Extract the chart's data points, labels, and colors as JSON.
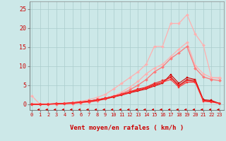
{
  "background_color": "#cce8e8",
  "grid_color": "#aacccc",
  "xlabel": "Vent moyen/en rafales ( km/h )",
  "x_ticks": [
    0,
    1,
    2,
    3,
    4,
    5,
    6,
    7,
    8,
    9,
    10,
    11,
    12,
    13,
    14,
    15,
    16,
    17,
    18,
    19,
    20,
    21,
    22,
    23
  ],
  "ylim": [
    -1.5,
    27
  ],
  "xlim": [
    -0.3,
    23.5
  ],
  "series": [
    {
      "name": "light_pink_top",
      "x": [
        0,
        1,
        2,
        3,
        4,
        5,
        6,
        7,
        8,
        9,
        10,
        11,
        12,
        13,
        14,
        15,
        16,
        17,
        18,
        19,
        20,
        21,
        22,
        23
      ],
      "y": [
        0.2,
        0.1,
        0.1,
        0.2,
        0.3,
        0.5,
        0.8,
        1.2,
        1.8,
        2.6,
        4.0,
        5.5,
        7.0,
        8.5,
        10.5,
        15.2,
        15.2,
        21.2,
        21.2,
        23.5,
        18.5,
        15.5,
        7.0,
        7.0
      ],
      "color": "#ffb0b0",
      "linewidth": 0.9,
      "marker": "D",
      "markersize": 2.0
    },
    {
      "name": "light_pink_mid",
      "x": [
        0,
        1,
        2,
        3,
        4,
        5,
        6,
        7,
        8,
        9,
        10,
        11,
        12,
        13,
        14,
        15,
        16,
        17,
        18,
        19,
        20,
        21,
        22,
        23
      ],
      "y": [
        2.2,
        0.0,
        0.0,
        0.05,
        0.1,
        0.2,
        0.4,
        0.6,
        1.0,
        1.5,
        2.2,
        3.2,
        4.5,
        6.0,
        8.0,
        9.5,
        10.5,
        12.5,
        14.5,
        16.2,
        10.2,
        8.0,
        7.0,
        6.8
      ],
      "color": "#ffb0b0",
      "linewidth": 0.9,
      "marker": "D",
      "markersize": 2.0
    },
    {
      "name": "medium_pink",
      "x": [
        0,
        1,
        2,
        3,
        4,
        5,
        6,
        7,
        8,
        9,
        10,
        11,
        12,
        13,
        14,
        15,
        16,
        17,
        18,
        19,
        20,
        21,
        22,
        23
      ],
      "y": [
        0.0,
        0.0,
        0.0,
        0.05,
        0.1,
        0.2,
        0.4,
        0.6,
        0.9,
        1.4,
        2.0,
        2.8,
        3.8,
        5.0,
        6.5,
        8.5,
        9.8,
        12.0,
        13.5,
        15.2,
        9.5,
        7.2,
        6.5,
        6.2
      ],
      "color": "#ff7777",
      "linewidth": 0.9,
      "marker": "D",
      "markersize": 2.0
    },
    {
      "name": "red_dark1",
      "x": [
        0,
        1,
        2,
        3,
        4,
        5,
        6,
        7,
        8,
        9,
        10,
        11,
        12,
        13,
        14,
        15,
        16,
        17,
        18,
        19,
        20,
        21,
        22,
        23
      ],
      "y": [
        0.0,
        0.0,
        0.05,
        0.1,
        0.2,
        0.3,
        0.5,
        0.7,
        1.0,
        1.4,
        1.9,
        2.4,
        3.0,
        3.5,
        4.0,
        4.8,
        5.5,
        7.8,
        5.5,
        7.0,
        6.5,
        1.2,
        1.0,
        0.2
      ],
      "color": "#cc0000",
      "linewidth": 0.8,
      "marker": "s",
      "markersize": 2.0
    },
    {
      "name": "red_dark2",
      "x": [
        0,
        1,
        2,
        3,
        4,
        5,
        6,
        7,
        8,
        9,
        10,
        11,
        12,
        13,
        14,
        15,
        16,
        17,
        18,
        19,
        20,
        21,
        22,
        23
      ],
      "y": [
        0.0,
        0.0,
        0.05,
        0.15,
        0.25,
        0.4,
        0.6,
        0.85,
        1.2,
        1.6,
        2.1,
        2.6,
        3.2,
        3.8,
        4.3,
        5.2,
        5.8,
        7.2,
        5.0,
        6.5,
        6.2,
        1.0,
        0.8,
        0.2
      ],
      "color": "#dd1111",
      "linewidth": 0.8,
      "marker": "s",
      "markersize": 2.0
    },
    {
      "name": "red_med1",
      "x": [
        0,
        1,
        2,
        3,
        4,
        5,
        6,
        7,
        8,
        9,
        10,
        11,
        12,
        13,
        14,
        15,
        16,
        17,
        18,
        19,
        20,
        21,
        22,
        23
      ],
      "y": [
        0.0,
        0.0,
        0.05,
        0.15,
        0.25,
        0.4,
        0.6,
        0.85,
        1.2,
        1.6,
        2.1,
        2.65,
        3.3,
        4.0,
        4.5,
        5.5,
        6.2,
        7.0,
        4.8,
        6.2,
        6.0,
        0.9,
        0.7,
        0.2
      ],
      "color": "#ee2222",
      "linewidth": 0.8,
      "marker": "s",
      "markersize": 2.0
    },
    {
      "name": "red_med2",
      "x": [
        0,
        1,
        2,
        3,
        4,
        5,
        6,
        7,
        8,
        9,
        10,
        11,
        12,
        13,
        14,
        15,
        16,
        17,
        18,
        19,
        20,
        21,
        22,
        23
      ],
      "y": [
        0.0,
        0.0,
        0.0,
        0.1,
        0.2,
        0.35,
        0.55,
        0.8,
        1.15,
        1.55,
        2.0,
        2.5,
        3.1,
        3.7,
        4.2,
        5.0,
        5.8,
        6.5,
        4.5,
        5.8,
        5.8,
        0.8,
        0.6,
        0.2
      ],
      "color": "#ff3333",
      "linewidth": 0.8,
      "marker": "s",
      "markersize": 2.0
    }
  ],
  "arrow_color": "#cc0000",
  "label_color": "#cc0000",
  "yticks": [
    0,
    5,
    10,
    15,
    20,
    25
  ]
}
